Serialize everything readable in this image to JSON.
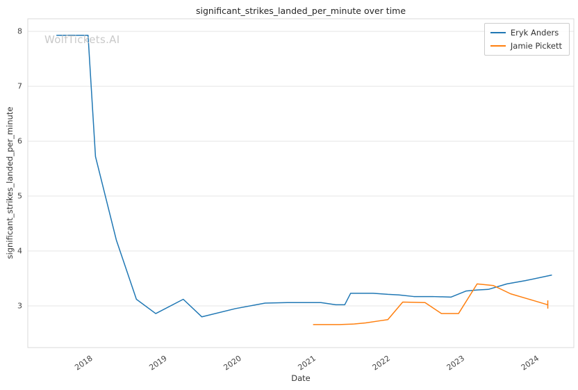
{
  "watermark": {
    "text": "WolfTickets.AI"
  },
  "chart_data": {
    "type": "line",
    "title": "significant_strikes_landed_per_minute over time",
    "xlabel": "Date",
    "ylabel": "significant_strikes_landed_per_minute",
    "xlim": [
      2017.16,
      2024.5
    ],
    "ylim": [
      2.24,
      8.23
    ],
    "xticks": [
      2018,
      2019,
      2020,
      2021,
      2022,
      2023,
      2024
    ],
    "yticks": [
      3,
      4,
      5,
      6,
      7,
      8
    ],
    "grid": "horizontal",
    "legend_position": "upper right",
    "series": [
      {
        "name": "Eryk Anders",
        "color": "#1f77b4",
        "points": [
          [
            2017.55,
            7.93
          ],
          [
            2017.97,
            7.93
          ],
          [
            2018.07,
            5.72
          ],
          [
            2018.35,
            4.2
          ],
          [
            2018.62,
            3.12
          ],
          [
            2018.88,
            2.86
          ],
          [
            2019.25,
            3.12
          ],
          [
            2019.5,
            2.8
          ],
          [
            2019.95,
            2.95
          ],
          [
            2020.35,
            3.05
          ],
          [
            2020.65,
            3.06
          ],
          [
            2021.1,
            3.06
          ],
          [
            2021.3,
            3.02
          ],
          [
            2021.42,
            3.02
          ],
          [
            2021.5,
            3.23
          ],
          [
            2021.8,
            3.23
          ],
          [
            2022.0,
            3.21
          ],
          [
            2022.15,
            3.2
          ],
          [
            2022.35,
            3.17
          ],
          [
            2022.6,
            3.17
          ],
          [
            2022.85,
            3.16
          ],
          [
            2023.05,
            3.27
          ],
          [
            2023.2,
            3.29
          ],
          [
            2023.35,
            3.3
          ],
          [
            2023.6,
            3.4
          ],
          [
            2023.85,
            3.46
          ],
          [
            2024.2,
            3.56
          ]
        ]
      },
      {
        "name": "Jamie Pickett",
        "color": "#ff7f0e",
        "points": [
          [
            2021.0,
            2.66
          ],
          [
            2021.35,
            2.66
          ],
          [
            2021.55,
            2.67
          ],
          [
            2021.7,
            2.69
          ],
          [
            2021.9,
            2.73
          ],
          [
            2022.0,
            2.75
          ],
          [
            2022.2,
            3.07
          ],
          [
            2022.5,
            3.06
          ],
          [
            2022.72,
            2.86
          ],
          [
            2022.95,
            2.86
          ],
          [
            2023.2,
            3.4
          ],
          [
            2023.42,
            3.37
          ],
          [
            2023.65,
            3.22
          ],
          [
            2023.95,
            3.1
          ],
          [
            2024.15,
            3.02
          ]
        ],
        "end_tick": {
          "x": 2024.15,
          "y1": 2.95,
          "y2": 3.1
        }
      }
    ]
  }
}
